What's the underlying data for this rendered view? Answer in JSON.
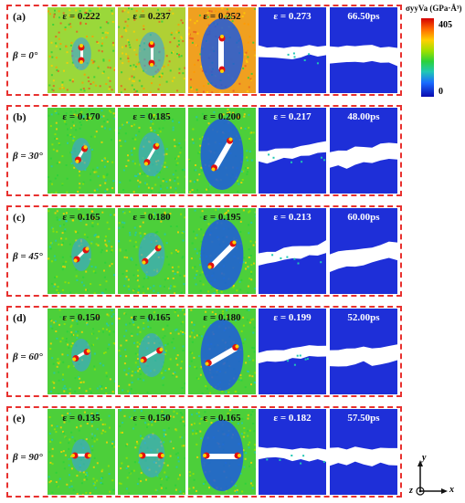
{
  "colorbar": {
    "title": "σyyVa (GPa·Å³)",
    "max": "405",
    "min": "0",
    "colors": [
      "#d50000",
      "#ff6a00",
      "#ffd000",
      "#9be000",
      "#2bd13a",
      "#20c8b4",
      "#1a6cff",
      "#0a0ab0"
    ]
  },
  "axes": {
    "x": "x",
    "y": "y",
    "z": "z"
  },
  "rows": [
    {
      "label": "(a)",
      "beta": "β = 0°",
      "strains": [
        "ε = 0.222",
        "ε = 0.237",
        "ε = 0.252",
        "ε = 0.273"
      ],
      "time": "66.50ps"
    },
    {
      "label": "(b)",
      "beta": "β = 30°",
      "strains": [
        "ε = 0.170",
        "ε = 0.185",
        "ε = 0.200",
        "ε = 0.217"
      ],
      "time": "48.00ps"
    },
    {
      "label": "(c)",
      "beta": "β = 45°",
      "strains": [
        "ε = 0.165",
        "ε = 0.180",
        "ε = 0.195",
        "ε = 0.213"
      ],
      "time": "60.00ps"
    },
    {
      "label": "(d)",
      "beta": "β = 60°",
      "strains": [
        "ε = 0.150",
        "ε = 0.165",
        "ε = 0.180",
        "ε = 0.199"
      ],
      "time": "52.00ps"
    },
    {
      "label": "(e)",
      "beta": "β = 90°",
      "strains": [
        "ε = 0.135",
        "ε = 0.150",
        "ε = 0.165",
        "ε = 0.182"
      ],
      "time": "57.50ps"
    }
  ]
}
